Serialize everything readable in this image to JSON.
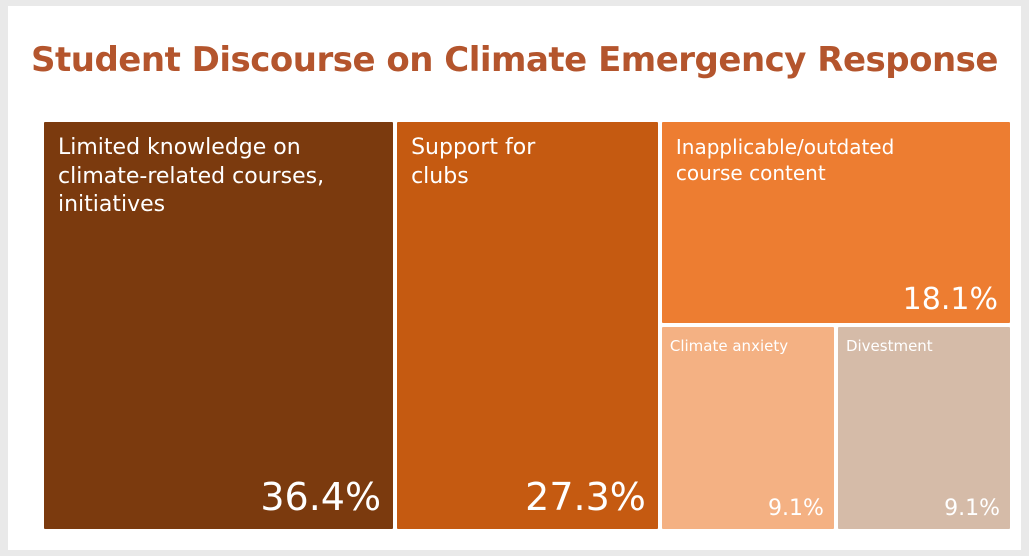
{
  "chart_data": {
    "type": "treemap",
    "title": "Student Discourse on Climate Emergency Response",
    "items": [
      {
        "label": "Limited knowledge on climate-related courses, initiatives",
        "value": 36.4,
        "value_label": "36.4%",
        "color": "#7b3a0e"
      },
      {
        "label": "Support for clubs",
        "value": 27.3,
        "value_label": "27.3%",
        "color": "#c55a11"
      },
      {
        "label": "Inapplicable/outdated course content",
        "value": 18.1,
        "value_label": "18.1%",
        "color": "#ed7d31"
      },
      {
        "label": "Climate anxiety",
        "value": 9.1,
        "value_label": "9.1%",
        "color": "#f4b183"
      },
      {
        "label": "Divestment",
        "value": 9.1,
        "value_label": "9.1%",
        "color": "#d5bba8"
      }
    ]
  }
}
